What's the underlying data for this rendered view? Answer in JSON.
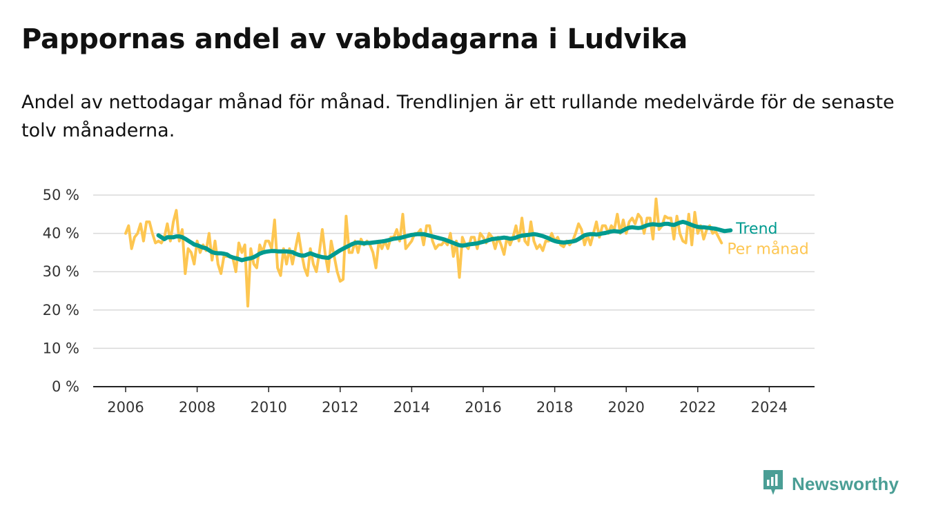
{
  "title": "Pappornas andel av vabbdagarna i Ludvika",
  "subtitle": "Andel av nettodagar månad för månad. Trendlinjen är ett rullande medelvärde för de senaste tolv månaderna.",
  "brand": {
    "name": "Newsworthy",
    "icon": "newsworthy-logo-icon",
    "color": "#4a9e95"
  },
  "chart_data": {
    "type": "line",
    "title": "Pappornas andel av vabbdagarna i Ludvika",
    "xlabel": "",
    "ylabel": "",
    "ylim": [
      0,
      50
    ],
    "xlim": [
      "2005-12",
      "2024-10"
    ],
    "grid": true,
    "legend": "end-of-line labels, right",
    "y_ticks": [
      0,
      10,
      20,
      30,
      40,
      50
    ],
    "y_tick_labels": [
      "0 %",
      "10 %",
      "20 %",
      "30 %",
      "40 %",
      "50 %"
    ],
    "x_ticks": [
      2006,
      2008,
      2010,
      2012,
      2014,
      2016,
      2018,
      2020,
      2022,
      2024
    ],
    "x_tick_labels": [
      "2006",
      "2008",
      "2010",
      "2012",
      "2014",
      "2016",
      "2018",
      "2020",
      "2022",
      "2024"
    ],
    "series": [
      {
        "name": "Per månad",
        "color": "#fdc651",
        "start": "2006-01",
        "values": [
          40.0,
          42.0,
          36.0,
          39.0,
          40.0,
          42.5,
          38.0,
          43.0,
          43.0,
          40.0,
          37.5,
          38.0,
          37.5,
          39.0,
          42.5,
          38.0,
          43.0,
          46.0,
          38.0,
          41.0,
          29.5,
          36.0,
          35.0,
          32.0,
          38.0,
          35.0,
          37.0,
          35.5,
          40.0,
          33.0,
          38.0,
          32.0,
          29.5,
          34.0,
          34.0,
          34.0,
          33.5,
          30.0,
          37.5,
          35.0,
          37.0,
          21.0,
          36.0,
          32.0,
          31.0,
          37.0,
          35.0,
          38.0,
          38.0,
          36.0,
          43.5,
          31.0,
          29.0,
          36.0,
          32.0,
          36.0,
          32.0,
          36.0,
          40.0,
          35.0,
          31.0,
          29.0,
          36.0,
          32.0,
          30.0,
          35.0,
          41.0,
          34.5,
          30.0,
          38.0,
          34.0,
          30.0,
          27.5,
          28.0,
          44.5,
          35.0,
          35.0,
          38.0,
          35.0,
          38.5,
          37.0,
          38.0,
          37.0,
          35.0,
          31.0,
          38.0,
          36.0,
          38.0,
          36.0,
          39.0,
          39.0,
          41.0,
          38.0,
          45.0,
          36.0,
          37.0,
          38.0,
          40.0,
          40.0,
          41.0,
          37.0,
          42.0,
          42.0,
          38.0,
          36.0,
          37.0,
          37.0,
          38.0,
          37.0,
          40.0,
          34.0,
          38.0,
          28.5,
          39.0,
          37.0,
          36.0,
          39.0,
          39.0,
          36.0,
          40.0,
          39.0,
          37.5,
          40.0,
          39.0,
          36.0,
          39.0,
          37.0,
          34.5,
          39.0,
          37.0,
          39.0,
          42.0,
          38.0,
          44.0,
          38.0,
          37.0,
          43.0,
          38.0,
          36.0,
          37.0,
          35.5,
          38.0,
          38.0,
          40.0,
          38.0,
          39.0,
          37.0,
          36.5,
          38.0,
          37.0,
          38.0,
          40.0,
          42.5,
          41.0,
          37.0,
          39.5,
          37.0,
          40.0,
          43.0,
          39.0,
          42.0,
          42.0,
          40.0,
          42.0,
          41.0,
          45.0,
          40.0,
          43.5,
          40.0,
          43.0,
          44.0,
          42.5,
          45.0,
          44.0,
          40.0,
          44.0,
          44.0,
          38.5,
          49.0,
          41.0,
          42.0,
          44.5,
          44.0,
          44.0,
          38.5,
          44.5,
          40.0,
          38.0,
          37.5,
          45.0,
          37.0,
          45.5,
          40.0,
          42.0,
          38.5,
          41.0,
          42.0,
          40.0,
          40.5,
          39.0,
          37.5
        ]
      },
      {
        "name": "Trend",
        "color": "#009a8f",
        "start": "2006-12",
        "values": [
          39.5,
          39.0,
          38.5,
          39.0,
          39.0,
          39.0,
          39.2,
          39.2,
          39.0,
          38.6,
          38.1,
          37.6,
          37.1,
          36.9,
          36.6,
          36.3,
          36.1,
          35.6,
          35.1,
          34.9,
          34.8,
          34.8,
          34.7,
          34.5,
          34.0,
          33.7,
          33.5,
          33.3,
          33.0,
          33.2,
          33.4,
          33.5,
          33.8,
          34.2,
          34.7,
          35.0,
          35.2,
          35.3,
          35.4,
          35.4,
          35.3,
          35.3,
          35.3,
          35.3,
          35.2,
          35.1,
          34.7,
          34.4,
          34.2,
          34.2,
          34.5,
          34.8,
          34.5,
          34.2,
          34.0,
          33.8,
          33.7,
          33.6,
          34.1,
          34.6,
          35.1,
          35.6,
          36.0,
          36.4,
          36.8,
          37.2,
          37.5,
          37.6,
          37.5,
          37.4,
          37.5,
          37.5,
          37.6,
          37.7,
          37.8,
          37.9,
          38.0,
          38.2,
          38.4,
          38.6,
          38.7,
          38.8,
          39.0,
          39.2,
          39.4,
          39.6,
          39.7,
          39.8,
          39.8,
          39.8,
          39.6,
          39.4,
          39.2,
          39.0,
          38.8,
          38.6,
          38.4,
          38.1,
          37.8,
          37.5,
          37.2,
          36.9,
          36.8,
          36.9,
          37.1,
          37.2,
          37.3,
          37.4,
          37.6,
          37.8,
          38.0,
          38.3,
          38.5,
          38.6,
          38.7,
          38.8,
          38.9,
          38.8,
          38.6,
          38.7,
          38.9,
          39.2,
          39.4,
          39.5,
          39.6,
          39.7,
          39.8,
          39.7,
          39.5,
          39.3,
          39.0,
          38.7,
          38.3,
          38.0,
          37.8,
          37.7,
          37.6,
          37.7,
          37.8,
          37.9,
          38.1,
          38.5,
          39.0,
          39.5,
          39.7,
          39.8,
          39.8,
          39.7,
          39.8,
          40.0,
          40.1,
          40.3,
          40.5,
          40.6,
          40.5,
          40.4,
          40.8,
          41.2,
          41.5,
          41.6,
          41.5,
          41.4,
          41.5,
          41.8,
          42.1,
          42.3,
          42.4,
          42.3,
          42.2,
          42.3,
          42.5,
          42.5,
          42.3,
          42.2,
          42.5,
          42.8,
          43.0,
          42.8,
          42.5,
          42.2,
          41.9,
          41.7,
          41.6,
          41.6,
          41.5,
          41.4,
          41.3,
          41.2,
          41.0,
          40.8,
          40.6,
          40.7,
          40.8
        ]
      }
    ]
  }
}
